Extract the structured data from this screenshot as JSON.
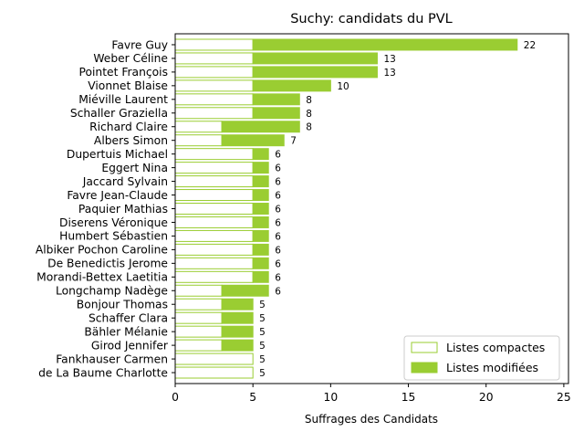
{
  "chart_data": {
    "type": "bar",
    "orientation": "horizontal",
    "stacked": true,
    "title": "Suchy: candidats du PVL",
    "xlabel": "Suffrages des Candidats",
    "ylabel": "",
    "xlim": [
      0,
      25.3
    ],
    "xticks": [
      0,
      5,
      10,
      15,
      20,
      25
    ],
    "grid": false,
    "legend_position": "bottom-right",
    "categories": [
      "Favre Guy",
      "Weber Céline",
      "Pointet François",
      "Vionnet Blaise",
      "Miéville Laurent",
      "Schaller Graziella",
      "Richard Claire",
      "Albers Simon",
      "Dupertuis Michael",
      "Eggert Nina",
      "Jaccard Sylvain",
      "Favre Jean-Claude",
      "Paquier Mathias",
      "Diserens Véronique",
      "Humbert Sébastien",
      "Albiker Pochon Caroline",
      "De Benedictis Jerome",
      "Morandi-Bettex Laetitia",
      "Longchamp Nadège",
      "Bonjour Thomas",
      "Schaffer Clara",
      "Bähler Mélanie",
      "Girod Jennifer",
      "Fankhauser Carmen",
      "de La Baume Charlotte"
    ],
    "series": [
      {
        "name": "Listes compactes",
        "color": "#ffffff",
        "edge_color": "#9acd32",
        "values": [
          5,
          5,
          5,
          5,
          5,
          5,
          3,
          3,
          5,
          5,
          5,
          5,
          5,
          5,
          5,
          5,
          5,
          5,
          3,
          3,
          3,
          3,
          3,
          5,
          5
        ]
      },
      {
        "name": "Listes modifiées",
        "color": "#9acd32",
        "edge_color": "#9acd32",
        "values": [
          17,
          8,
          8,
          5,
          3,
          3,
          5,
          4,
          1,
          1,
          1,
          1,
          1,
          1,
          1,
          1,
          1,
          1,
          3,
          2,
          2,
          2,
          2,
          0,
          0
        ]
      }
    ],
    "totals": [
      22,
      13,
      13,
      10,
      8,
      8,
      8,
      7,
      6,
      6,
      6,
      6,
      6,
      6,
      6,
      6,
      6,
      6,
      6,
      5,
      5,
      5,
      5,
      5,
      5
    ]
  }
}
